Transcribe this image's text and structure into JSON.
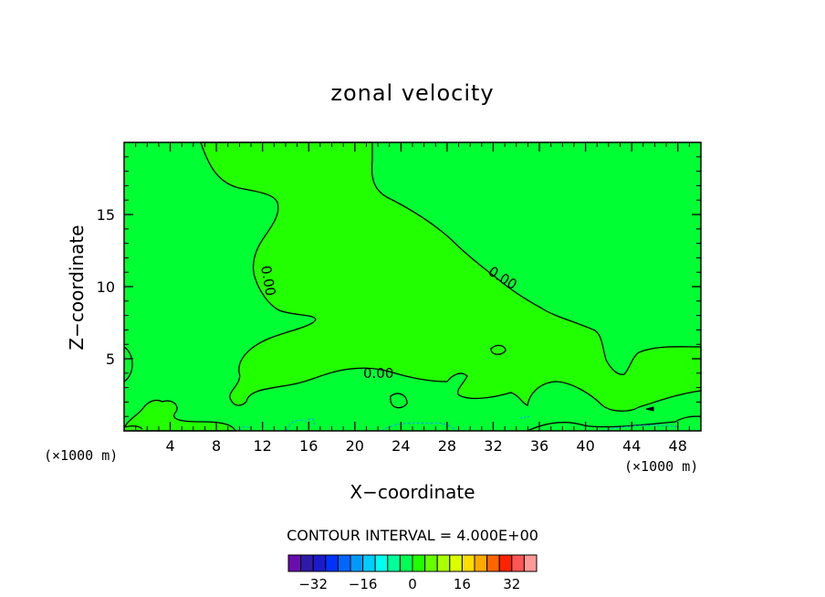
{
  "chart_data": {
    "type": "contour",
    "title": "zonal velocity",
    "xlabel": "X−coordinate",
    "ylabel": "Z−coordinate",
    "x_unit_left": "(×1000 m)",
    "x_unit_right": "(×1000 m)",
    "xlim": [
      0,
      50
    ],
    "ylim": [
      0,
      20
    ],
    "x_ticks": [
      "4",
      "8",
      "12",
      "16",
      "20",
      "24",
      "28",
      "32",
      "36",
      "40",
      "44",
      "48"
    ],
    "x_tick_values": [
      4,
      8,
      12,
      16,
      20,
      24,
      28,
      32,
      36,
      40,
      44,
      48
    ],
    "y_ticks": [
      "5",
      "10",
      "15"
    ],
    "y_tick_values": [
      5,
      10,
      15
    ],
    "contour_interval_text": "CONTOUR INTERVAL = 4.000E+00",
    "contour_labels": [
      "0.00",
      "0.00",
      "0.00"
    ],
    "colorbar": {
      "tick_labels": [
        "−32",
        "−16",
        "0",
        "16",
        "32"
      ],
      "tick_values": [
        -32,
        -16,
        0,
        16,
        32
      ],
      "colors": [
        "#6a0dad",
        "#2e1aa8",
        "#1a1acc",
        "#0033ff",
        "#0066ff",
        "#0099ff",
        "#00ccff",
        "#00ffee",
        "#00ff99",
        "#00ff55",
        "#22ff00",
        "#66ff00",
        "#aaff00",
        "#ddff00",
        "#ffdd00",
        "#ffaa00",
        "#ff6600",
        "#ff2200",
        "#ff5555",
        "#ff9999"
      ]
    },
    "fill_colors": {
      "background": "#00ff33",
      "region": "#22ff00"
    }
  }
}
